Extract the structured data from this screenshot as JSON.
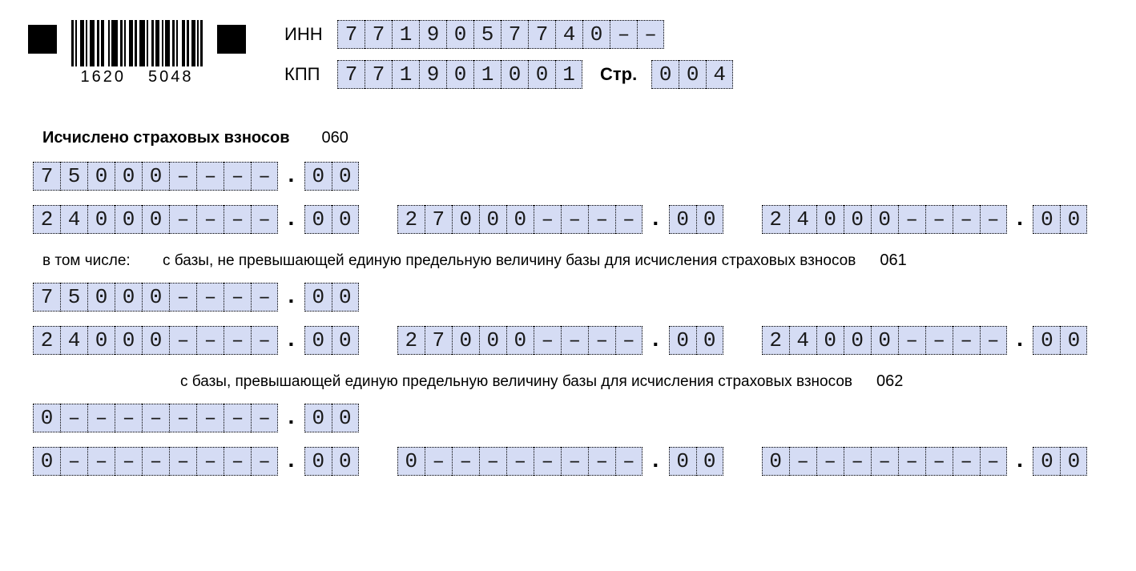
{
  "colors": {
    "cell_bg": "#d5dcf4",
    "cell_border": "#000000",
    "page_bg": "#ffffff",
    "text": "#000000"
  },
  "barcode": {
    "left_digits": "1620",
    "right_digits": "5048"
  },
  "header": {
    "inn_label": "ИНН",
    "inn_cells": [
      "7",
      "7",
      "1",
      "9",
      "0",
      "5",
      "7",
      "7",
      "4",
      "0",
      "–",
      "–"
    ],
    "kpp_label": "КПП",
    "kpp_cells": [
      "7",
      "7",
      "1",
      "9",
      "0",
      "1",
      "0",
      "0",
      "1"
    ],
    "page_label": "Стр.",
    "page_cells": [
      "0",
      "0",
      "4"
    ]
  },
  "section060": {
    "title": "Исчислено страховых взносов",
    "code": "060",
    "row1": {
      "a_int": [
        "7",
        "5",
        "0",
        "0",
        "0",
        "–",
        "–",
        "–",
        "–"
      ],
      "a_dec": [
        "0",
        "0"
      ]
    },
    "row2": {
      "a_int": [
        "2",
        "4",
        "0",
        "0",
        "0",
        "–",
        "–",
        "–",
        "–"
      ],
      "a_dec": [
        "0",
        "0"
      ],
      "b_int": [
        "2",
        "7",
        "0",
        "0",
        "0",
        "–",
        "–",
        "–",
        "–"
      ],
      "b_dec": [
        "0",
        "0"
      ],
      "c_int": [
        "2",
        "4",
        "0",
        "0",
        "0",
        "–",
        "–",
        "–",
        "–"
      ],
      "c_dec": [
        "0",
        "0"
      ]
    }
  },
  "section061": {
    "lead": "в том числе:",
    "title": "с базы, не превышающей единую предельную величину базы для исчисления страховых взносов",
    "code": "061",
    "row1": {
      "a_int": [
        "7",
        "5",
        "0",
        "0",
        "0",
        "–",
        "–",
        "–",
        "–"
      ],
      "a_dec": [
        "0",
        "0"
      ]
    },
    "row2": {
      "a_int": [
        "2",
        "4",
        "0",
        "0",
        "0",
        "–",
        "–",
        "–",
        "–"
      ],
      "a_dec": [
        "0",
        "0"
      ],
      "b_int": [
        "2",
        "7",
        "0",
        "0",
        "0",
        "–",
        "–",
        "–",
        "–"
      ],
      "b_dec": [
        "0",
        "0"
      ],
      "c_int": [
        "2",
        "4",
        "0",
        "0",
        "0",
        "–",
        "–",
        "–",
        "–"
      ],
      "c_dec": [
        "0",
        "0"
      ]
    }
  },
  "section062": {
    "title": "с базы, превышающей единую предельную величину базы для исчисления страховых взносов",
    "code": "062",
    "row1": {
      "a_int": [
        "0",
        "–",
        "–",
        "–",
        "–",
        "–",
        "–",
        "–",
        "–"
      ],
      "a_dec": [
        "0",
        "0"
      ]
    },
    "row2": {
      "a_int": [
        "0",
        "–",
        "–",
        "–",
        "–",
        "–",
        "–",
        "–",
        "–"
      ],
      "a_dec": [
        "0",
        "0"
      ],
      "b_int": [
        "0",
        "–",
        "–",
        "–",
        "–",
        "–",
        "–",
        "–",
        "–"
      ],
      "b_dec": [
        "0",
        "0"
      ],
      "c_int": [
        "0",
        "–",
        "–",
        "–",
        "–",
        "–",
        "–",
        "–",
        "–"
      ],
      "c_dec": [
        "0",
        "0"
      ]
    }
  }
}
